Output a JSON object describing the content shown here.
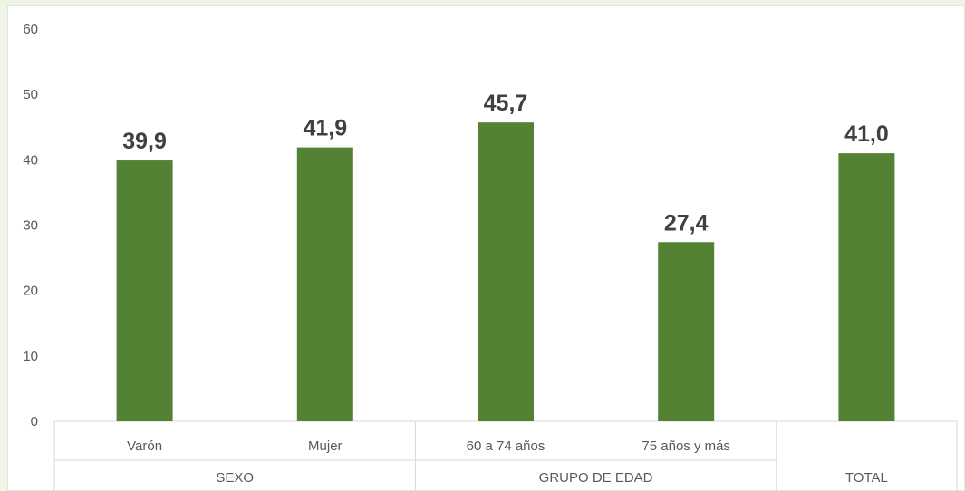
{
  "chart_data": {
    "type": "bar",
    "categories": [
      "Varón",
      "Mujer",
      "60 a 74 años",
      "75 años y más",
      ""
    ],
    "groups": [
      {
        "label": "SEXO",
        "categories": [
          "Varón",
          "Mujer"
        ]
      },
      {
        "label": "GRUPO DE EDAD",
        "categories": [
          "60 a 74 años",
          "75 años y más"
        ]
      },
      {
        "label": "TOTAL",
        "categories": [
          ""
        ]
      }
    ],
    "values": [
      39.9,
      41.9,
      45.7,
      27.4,
      41.0
    ],
    "value_labels": [
      "39,9",
      "41,9",
      "45,7",
      "27,4",
      "41,0"
    ],
    "yticks": [
      "0",
      "10",
      "20",
      "30",
      "40",
      "50",
      "60"
    ],
    "ylim": [
      0,
      60
    ],
    "title": "",
    "xlabel": "",
    "ylabel": "",
    "grid": false,
    "bar_color": "#548235",
    "axis_color": "#d9d9d9"
  }
}
